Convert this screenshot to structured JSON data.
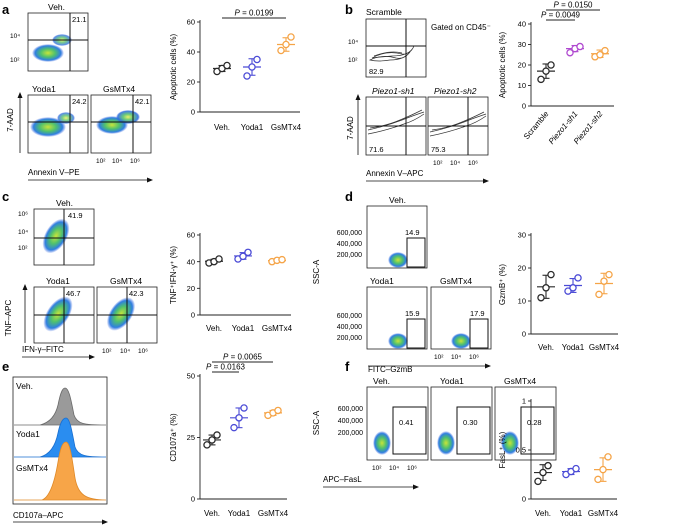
{
  "colors": {
    "veh": "#2a2a2a",
    "yoda1": "#4b4bd6",
    "gsmtx4": "#f5a447",
    "scramble": "#2a2a2a",
    "sh1": "#b04ad0",
    "sh2": "#f5a447",
    "hist_veh": "#9a9a9a",
    "hist_yoda1": "#2a8df0",
    "hist_gsmtx4": "#f7a548"
  },
  "panels": {
    "a": {
      "letter": "a",
      "flow_titles": [
        "Veh.",
        "Yoda1",
        "GsMTx4"
      ],
      "quadrant_values": [
        "21.1",
        "24.2",
        "42.1"
      ],
      "y_axis_label": "7-AAD",
      "x_axis_label": "Annexin V–PE",
      "y_ticks": [
        "10⁴",
        "10²"
      ],
      "x_ticks": [
        "10²",
        "10⁴",
        "10⁶"
      ]
    },
    "b": {
      "letter": "b",
      "flow_titles": [
        "Scramble",
        "Piezo1-sh1",
        "Piezo1-sh2"
      ],
      "gated_note": "Gated on CD45⁻",
      "quadrant_values": [
        "82.9",
        "71.6",
        "75.3"
      ],
      "y_axis_label": "7-AAD",
      "x_axis_label": "Annexin V–APC",
      "y_ticks": [
        "10⁴",
        "10²"
      ],
      "x_ticks": [
        "10²",
        "10⁴",
        "10⁶"
      ]
    },
    "c": {
      "letter": "c",
      "flow_titles": [
        "Veh.",
        "Yoda1",
        "GsMTx4"
      ],
      "quadrant_values": [
        "41.9",
        "46.7",
        "42.3"
      ],
      "y_axis_label": "TNF–APC",
      "x_axis_label": "IFN-γ–FITC",
      "y_ticks": [
        "10⁶",
        "10⁴",
        "10²"
      ],
      "x_ticks": [
        "10²",
        "10⁴",
        "10⁶"
      ]
    },
    "d": {
      "letter": "d",
      "flow_titles": [
        "Veh.",
        "Yoda1",
        "GsMTx4"
      ],
      "gate_values": [
        "14.9",
        "15.9",
        "17.9"
      ],
      "y_axis_label": "SSC-A",
      "x_axis_label": "FITC–GzmB",
      "y_ticks": [
        "600,000",
        "400,000",
        "200,000"
      ],
      "x_ticks": [
        "10²",
        "10⁴",
        "10⁶"
      ]
    },
    "e": {
      "letter": "e",
      "hist_labels": [
        "Veh.",
        "Yoda1",
        "GsMTx4"
      ],
      "x_axis_label": "CD107a–APC"
    },
    "f": {
      "letter": "f",
      "flow_titles": [
        "Veh.",
        "Yoda1",
        "GsMTx4"
      ],
      "gate_values": [
        "0.41",
        "0.30",
        "0.28"
      ],
      "y_axis_label": "SSC-A",
      "x_axis_label": "APC–FasL",
      "y_ticks": [
        "600,000",
        "400,000",
        "200,000"
      ],
      "x_ticks": [
        "10²",
        "10⁴",
        "10⁶"
      ]
    }
  },
  "chart_data": [
    {
      "id": "a",
      "type": "scatter",
      "title": "",
      "xlabel": "",
      "ylabel": "Apoptotic cells (%)",
      "ylim": [
        0,
        60
      ],
      "yticks": [
        0,
        20,
        40,
        60
      ],
      "categories": [
        "Veh.",
        "Yoda1",
        "GsMTx4"
      ],
      "series": [
        {
          "name": "Veh.",
          "values": [
            27,
            29,
            31
          ],
          "mean": 29,
          "sd": 2
        },
        {
          "name": "Yoda1",
          "values": [
            24,
            30,
            35
          ],
          "mean": 30,
          "sd": 5.5
        },
        {
          "name": "GsMTx4",
          "values": [
            41,
            45,
            50
          ],
          "mean": 45,
          "sd": 4.5
        }
      ],
      "annotations": [
        {
          "text": "P = 0.0199",
          "from": 0,
          "to": 2
        }
      ]
    },
    {
      "id": "b",
      "type": "scatter",
      "title": "",
      "xlabel": "",
      "ylabel": "Apoptotic cells (%)",
      "ylim": [
        0,
        40
      ],
      "yticks": [
        0,
        10,
        20,
        30,
        40
      ],
      "categories": [
        "Scramble",
        "Piezo1-sh1",
        "Piezo1-sh2"
      ],
      "series": [
        {
          "name": "Scramble",
          "values": [
            13,
            17,
            20
          ],
          "mean": 17,
          "sd": 3.5
        },
        {
          "name": "Piezo1-sh1",
          "values": [
            26,
            28,
            29
          ],
          "mean": 28,
          "sd": 1.5
        },
        {
          "name": "Piezo1-sh2",
          "values": [
            24,
            25,
            27
          ],
          "mean": 25.5,
          "sd": 1.8
        }
      ],
      "annotations": [
        {
          "text": "P = 0.0049",
          "from": 0,
          "to": 1
        },
        {
          "text": "P = 0.0150",
          "from": 0,
          "to": 2
        }
      ]
    },
    {
      "id": "c",
      "type": "scatter",
      "title": "",
      "xlabel": "",
      "ylabel": "TNF⁺IFN-γ⁺ (%)",
      "ylim": [
        0,
        60
      ],
      "yticks": [
        0,
        20,
        40,
        60
      ],
      "categories": [
        "Veh.",
        "Yoda1",
        "GsMTx4"
      ],
      "series": [
        {
          "name": "Veh.",
          "values": [
            39,
            40,
            42
          ],
          "mean": 40.3,
          "sd": 1.5
        },
        {
          "name": "Yoda1",
          "values": [
            42,
            44,
            47
          ],
          "mean": 44.3,
          "sd": 2.5
        },
        {
          "name": "GsMTx4",
          "values": [
            40,
            41,
            41.5
          ],
          "mean": 40.8,
          "sd": 0.8
        }
      ],
      "annotations": []
    },
    {
      "id": "d",
      "type": "scatter",
      "title": "",
      "xlabel": "",
      "ylabel": "GzmB⁺ (%)",
      "ylim": [
        0,
        30
      ],
      "yticks": [
        0,
        10,
        20,
        30
      ],
      "categories": [
        "Veh.",
        "Yoda1",
        "GsMTx4"
      ],
      "series": [
        {
          "name": "Veh.",
          "values": [
            11,
            14,
            18
          ],
          "mean": 14.3,
          "sd": 3.5
        },
        {
          "name": "Yoda1",
          "values": [
            13,
            14,
            17
          ],
          "mean": 14.7,
          "sd": 2.1
        },
        {
          "name": "GsMTx4",
          "values": [
            12,
            16,
            18
          ],
          "mean": 15.3,
          "sd": 3.1
        }
      ],
      "annotations": []
    },
    {
      "id": "e",
      "type": "scatter",
      "title": "",
      "xlabel": "",
      "ylabel": "CD107a⁺ (%)",
      "ylim": [
        0,
        50
      ],
      "yticks": [
        0,
        25,
        50
      ],
      "categories": [
        "Veh.",
        "Yoda1",
        "GsMTx4"
      ],
      "series": [
        {
          "name": "Veh.",
          "values": [
            22,
            24,
            26
          ],
          "mean": 24,
          "sd": 2
        },
        {
          "name": "Yoda1",
          "values": [
            29,
            33,
            37
          ],
          "mean": 33,
          "sd": 4
        },
        {
          "name": "GsMTx4",
          "values": [
            34,
            35,
            36
          ],
          "mean": 35,
          "sd": 1
        }
      ],
      "annotations": [
        {
          "text": "P = 0.0163",
          "from": 0,
          "to": 1
        },
        {
          "text": "P = 0.0065",
          "from": 0,
          "to": 2
        }
      ]
    },
    {
      "id": "f",
      "type": "scatter",
      "title": "",
      "xlabel": "",
      "ylabel": "FasL⁺ (%)",
      "ylim": [
        0,
        1
      ],
      "yticks": [
        0,
        0.5,
        1
      ],
      "ytick_labels": [
        "0",
        "0.5",
        "1"
      ],
      "categories": [
        "Veh.",
        "Yoda1",
        "GsMTx4"
      ],
      "series": [
        {
          "name": "Veh.",
          "values": [
            0.18,
            0.27,
            0.34
          ],
          "mean": 0.27,
          "sd": 0.08
        },
        {
          "name": "Yoda1",
          "values": [
            0.25,
            0.28,
            0.31
          ],
          "mean": 0.28,
          "sd": 0.03
        },
        {
          "name": "GsMTx4",
          "values": [
            0.2,
            0.3,
            0.43
          ],
          "mean": 0.3,
          "sd": 0.12
        }
      ],
      "annotations": []
    }
  ]
}
